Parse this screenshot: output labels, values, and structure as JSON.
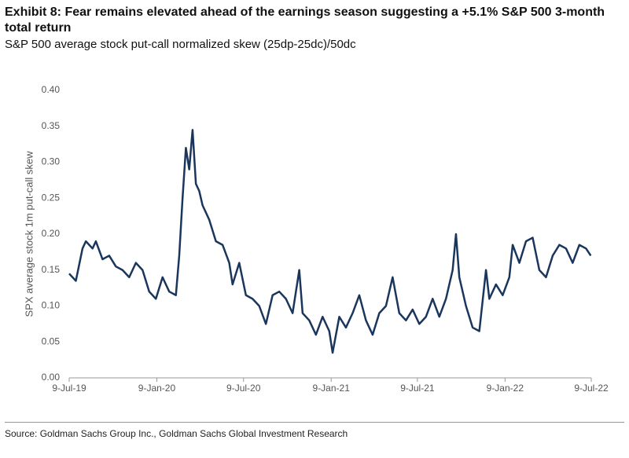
{
  "chart_data": {
    "type": "line",
    "title": "Exhibit 8: Fear remains elevated ahead of the earnings season suggesting a +5.1% S&P 500 3-month total return",
    "subtitle": "S&P 500 average stock put-call normalized skew (25dp-25dc)/50dc",
    "y_label": "SPX average stock 1m put-call skew",
    "source": "Source: Goldman Sachs Group Inc., Goldman Sachs Global Investment Research",
    "x": [
      "2019-07-09",
      "2019-07-23",
      "2019-08-06",
      "2019-08-13",
      "2019-08-27",
      "2019-09-03",
      "2019-09-17",
      "2019-10-01",
      "2019-10-15",
      "2019-10-29",
      "2019-11-12",
      "2019-11-26",
      "2019-12-10",
      "2019-12-24",
      "2020-01-07",
      "2020-01-21",
      "2020-02-04",
      "2020-02-18",
      "2020-02-25",
      "2020-03-03",
      "2020-03-10",
      "2020-03-17",
      "2020-03-24",
      "2020-03-31",
      "2020-04-07",
      "2020-04-14",
      "2020-04-28",
      "2020-05-12",
      "2020-05-26",
      "2020-06-09",
      "2020-06-16",
      "2020-06-30",
      "2020-07-14",
      "2020-07-28",
      "2020-08-11",
      "2020-08-25",
      "2020-09-08",
      "2020-09-22",
      "2020-10-06",
      "2020-10-20",
      "2020-11-03",
      "2020-11-10",
      "2020-11-24",
      "2020-12-08",
      "2020-12-22",
      "2021-01-05",
      "2021-01-12",
      "2021-01-26",
      "2021-02-09",
      "2021-02-23",
      "2021-03-09",
      "2021-03-23",
      "2021-04-06",
      "2021-04-20",
      "2021-05-04",
      "2021-05-18",
      "2021-06-01",
      "2021-06-15",
      "2021-06-29",
      "2021-07-13",
      "2021-07-27",
      "2021-08-10",
      "2021-08-24",
      "2021-09-07",
      "2021-09-21",
      "2021-09-28",
      "2021-10-05",
      "2021-10-19",
      "2021-11-02",
      "2021-11-16",
      "2021-11-30",
      "2021-12-07",
      "2021-12-21",
      "2022-01-04",
      "2022-01-18",
      "2022-01-25",
      "2022-02-08",
      "2022-02-22",
      "2022-03-08",
      "2022-03-22",
      "2022-04-05",
      "2022-04-19",
      "2022-05-03",
      "2022-05-17",
      "2022-05-31",
      "2022-06-14",
      "2022-06-28",
      "2022-07-08"
    ],
    "series": [
      {
        "name": "SPX average stock 1m put-call skew",
        "color": "#1b365d",
        "values": [
          0.145,
          0.135,
          0.18,
          0.19,
          0.18,
          0.19,
          0.165,
          0.17,
          0.155,
          0.15,
          0.14,
          0.16,
          0.15,
          0.12,
          0.11,
          0.14,
          0.12,
          0.115,
          0.17,
          0.25,
          0.32,
          0.29,
          0.345,
          0.27,
          0.26,
          0.24,
          0.22,
          0.19,
          0.185,
          0.16,
          0.13,
          0.16,
          0.115,
          0.11,
          0.1,
          0.075,
          0.115,
          0.12,
          0.11,
          0.09,
          0.15,
          0.09,
          0.08,
          0.06,
          0.085,
          0.065,
          0.035,
          0.085,
          0.07,
          0.09,
          0.115,
          0.08,
          0.06,
          0.09,
          0.1,
          0.14,
          0.09,
          0.08,
          0.095,
          0.075,
          0.085,
          0.11,
          0.085,
          0.11,
          0.15,
          0.2,
          0.14,
          0.1,
          0.07,
          0.065,
          0.15,
          0.11,
          0.13,
          0.115,
          0.14,
          0.185,
          0.16,
          0.19,
          0.195,
          0.15,
          0.14,
          0.17,
          0.185,
          0.18,
          0.16,
          0.185,
          0.18,
          0.17
        ]
      }
    ],
    "xlim": [
      "2019-07-09",
      "2022-07-09"
    ],
    "xticks": [
      {
        "value": "2019-07-09",
        "label": "9-Jul-19"
      },
      {
        "value": "2020-01-09",
        "label": "9-Jan-20"
      },
      {
        "value": "2020-07-09",
        "label": "9-Jul-20"
      },
      {
        "value": "2021-01-09",
        "label": "9-Jan-21"
      },
      {
        "value": "2021-07-09",
        "label": "9-Jul-21"
      },
      {
        "value": "2022-01-09",
        "label": "9-Jan-22"
      },
      {
        "value": "2022-07-09",
        "label": "9-Jul-22"
      }
    ],
    "ylim": [
      0,
      0.4
    ],
    "yticks": [
      {
        "value": 0,
        "label": "0.00"
      },
      {
        "value": 0.05,
        "label": "0.05"
      },
      {
        "value": 0.1,
        "label": "0.10"
      },
      {
        "value": 0.15,
        "label": "0.15"
      },
      {
        "value": 0.2,
        "label": "0.20"
      },
      {
        "value": 0.25,
        "label": "0.25"
      },
      {
        "value": 0.3,
        "label": "0.30"
      },
      {
        "value": 0.35,
        "label": "0.35"
      },
      {
        "value": 0.4,
        "label": "0.40"
      }
    ],
    "grid": false
  }
}
